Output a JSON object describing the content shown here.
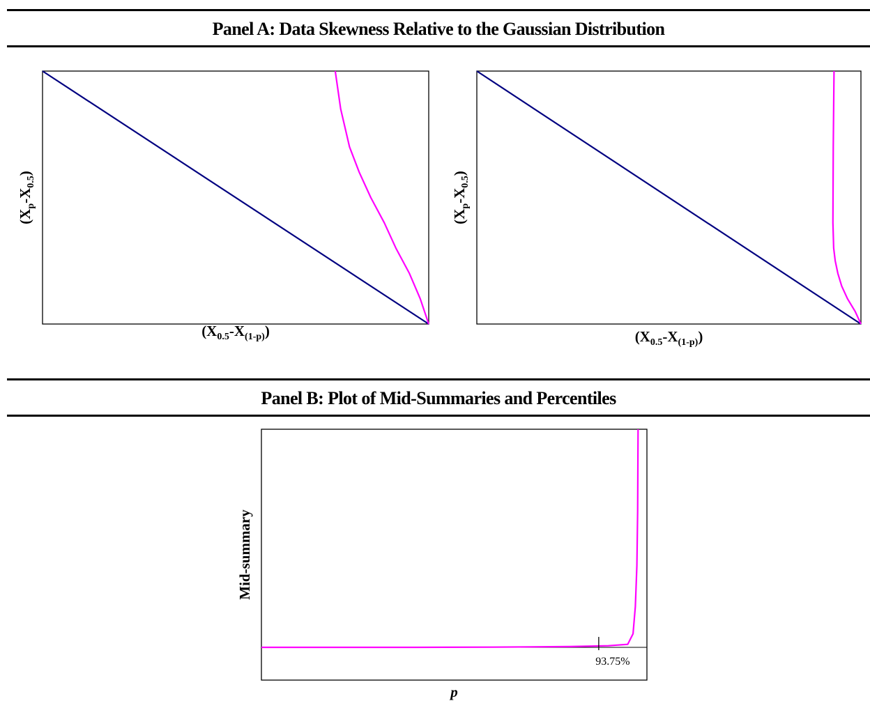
{
  "panel_a": {
    "title": "Panel A: Data Skewness Relative to the Gaussian Distribution"
  },
  "panel_b": {
    "title": "Panel B: Plot of Mid-Summaries and Percentiles"
  },
  "colors": {
    "reference_line": "#000080",
    "data_curve": "#ff00ff",
    "frame": "#000000"
  },
  "chart_data": [
    {
      "type": "line",
      "title": "",
      "xlabel": "(X0.5-X(1-p))",
      "ylabel": "(Xp-X0.5)",
      "xlim": [
        0,
        1
      ],
      "ylim": [
        0,
        1
      ],
      "grid": false,
      "series": [
        {
          "values": [
            [
              0,
              1
            ],
            [
              1,
              0
            ]
          ]
        },
        {
          "values": [
            [
              0.758,
              1.0
            ],
            [
              0.772,
              0.85
            ],
            [
              0.795,
              0.7
            ],
            [
              0.82,
              0.6
            ],
            [
              0.85,
              0.5
            ],
            [
              0.885,
              0.4
            ],
            [
              0.915,
              0.3
            ],
            [
              0.95,
              0.2
            ],
            [
              0.978,
              0.1
            ],
            [
              1.0,
              0.0
            ]
          ]
        }
      ]
    },
    {
      "type": "line",
      "title": "",
      "xlabel": "(X0.5-X(1-p))",
      "ylabel": "(Xp-X0.5)",
      "xlim": [
        0,
        1
      ],
      "ylim": [
        0,
        1
      ],
      "grid": false,
      "series": [
        {
          "values": [
            [
              0,
              1
            ],
            [
              1,
              0
            ]
          ]
        },
        {
          "values": [
            [
              0.93,
              1.0
            ],
            [
              0.928,
              0.7
            ],
            [
              0.927,
              0.4
            ],
            [
              0.929,
              0.3
            ],
            [
              0.933,
              0.25
            ],
            [
              0.94,
              0.2
            ],
            [
              0.95,
              0.15
            ],
            [
              0.965,
              0.1
            ],
            [
              0.985,
              0.05
            ],
            [
              1.0,
              0.0
            ]
          ]
        }
      ]
    },
    {
      "type": "line",
      "title": "",
      "xlabel": "p",
      "ylabel": "Mid-summary",
      "xlim": [
        0.5,
        1.0
      ],
      "ylim": [
        -0.12,
        0.8
      ],
      "grid": false,
      "baseline": 0,
      "annotations": [
        {
          "x": 0.9375,
          "text": "93.75%"
        }
      ],
      "series": [
        {
          "values": [
            [
              0.5,
              0.0
            ],
            [
              0.6,
              0.0
            ],
            [
              0.7,
              0.0
            ],
            [
              0.8,
              0.001
            ],
            [
              0.9,
              0.003
            ],
            [
              0.95,
              0.006
            ],
            [
              0.975,
              0.011
            ],
            [
              0.982,
              0.05
            ],
            [
              0.985,
              0.15
            ],
            [
              0.987,
              0.3
            ],
            [
              0.988,
              0.5
            ],
            [
              0.9885,
              0.8
            ]
          ]
        }
      ]
    }
  ]
}
